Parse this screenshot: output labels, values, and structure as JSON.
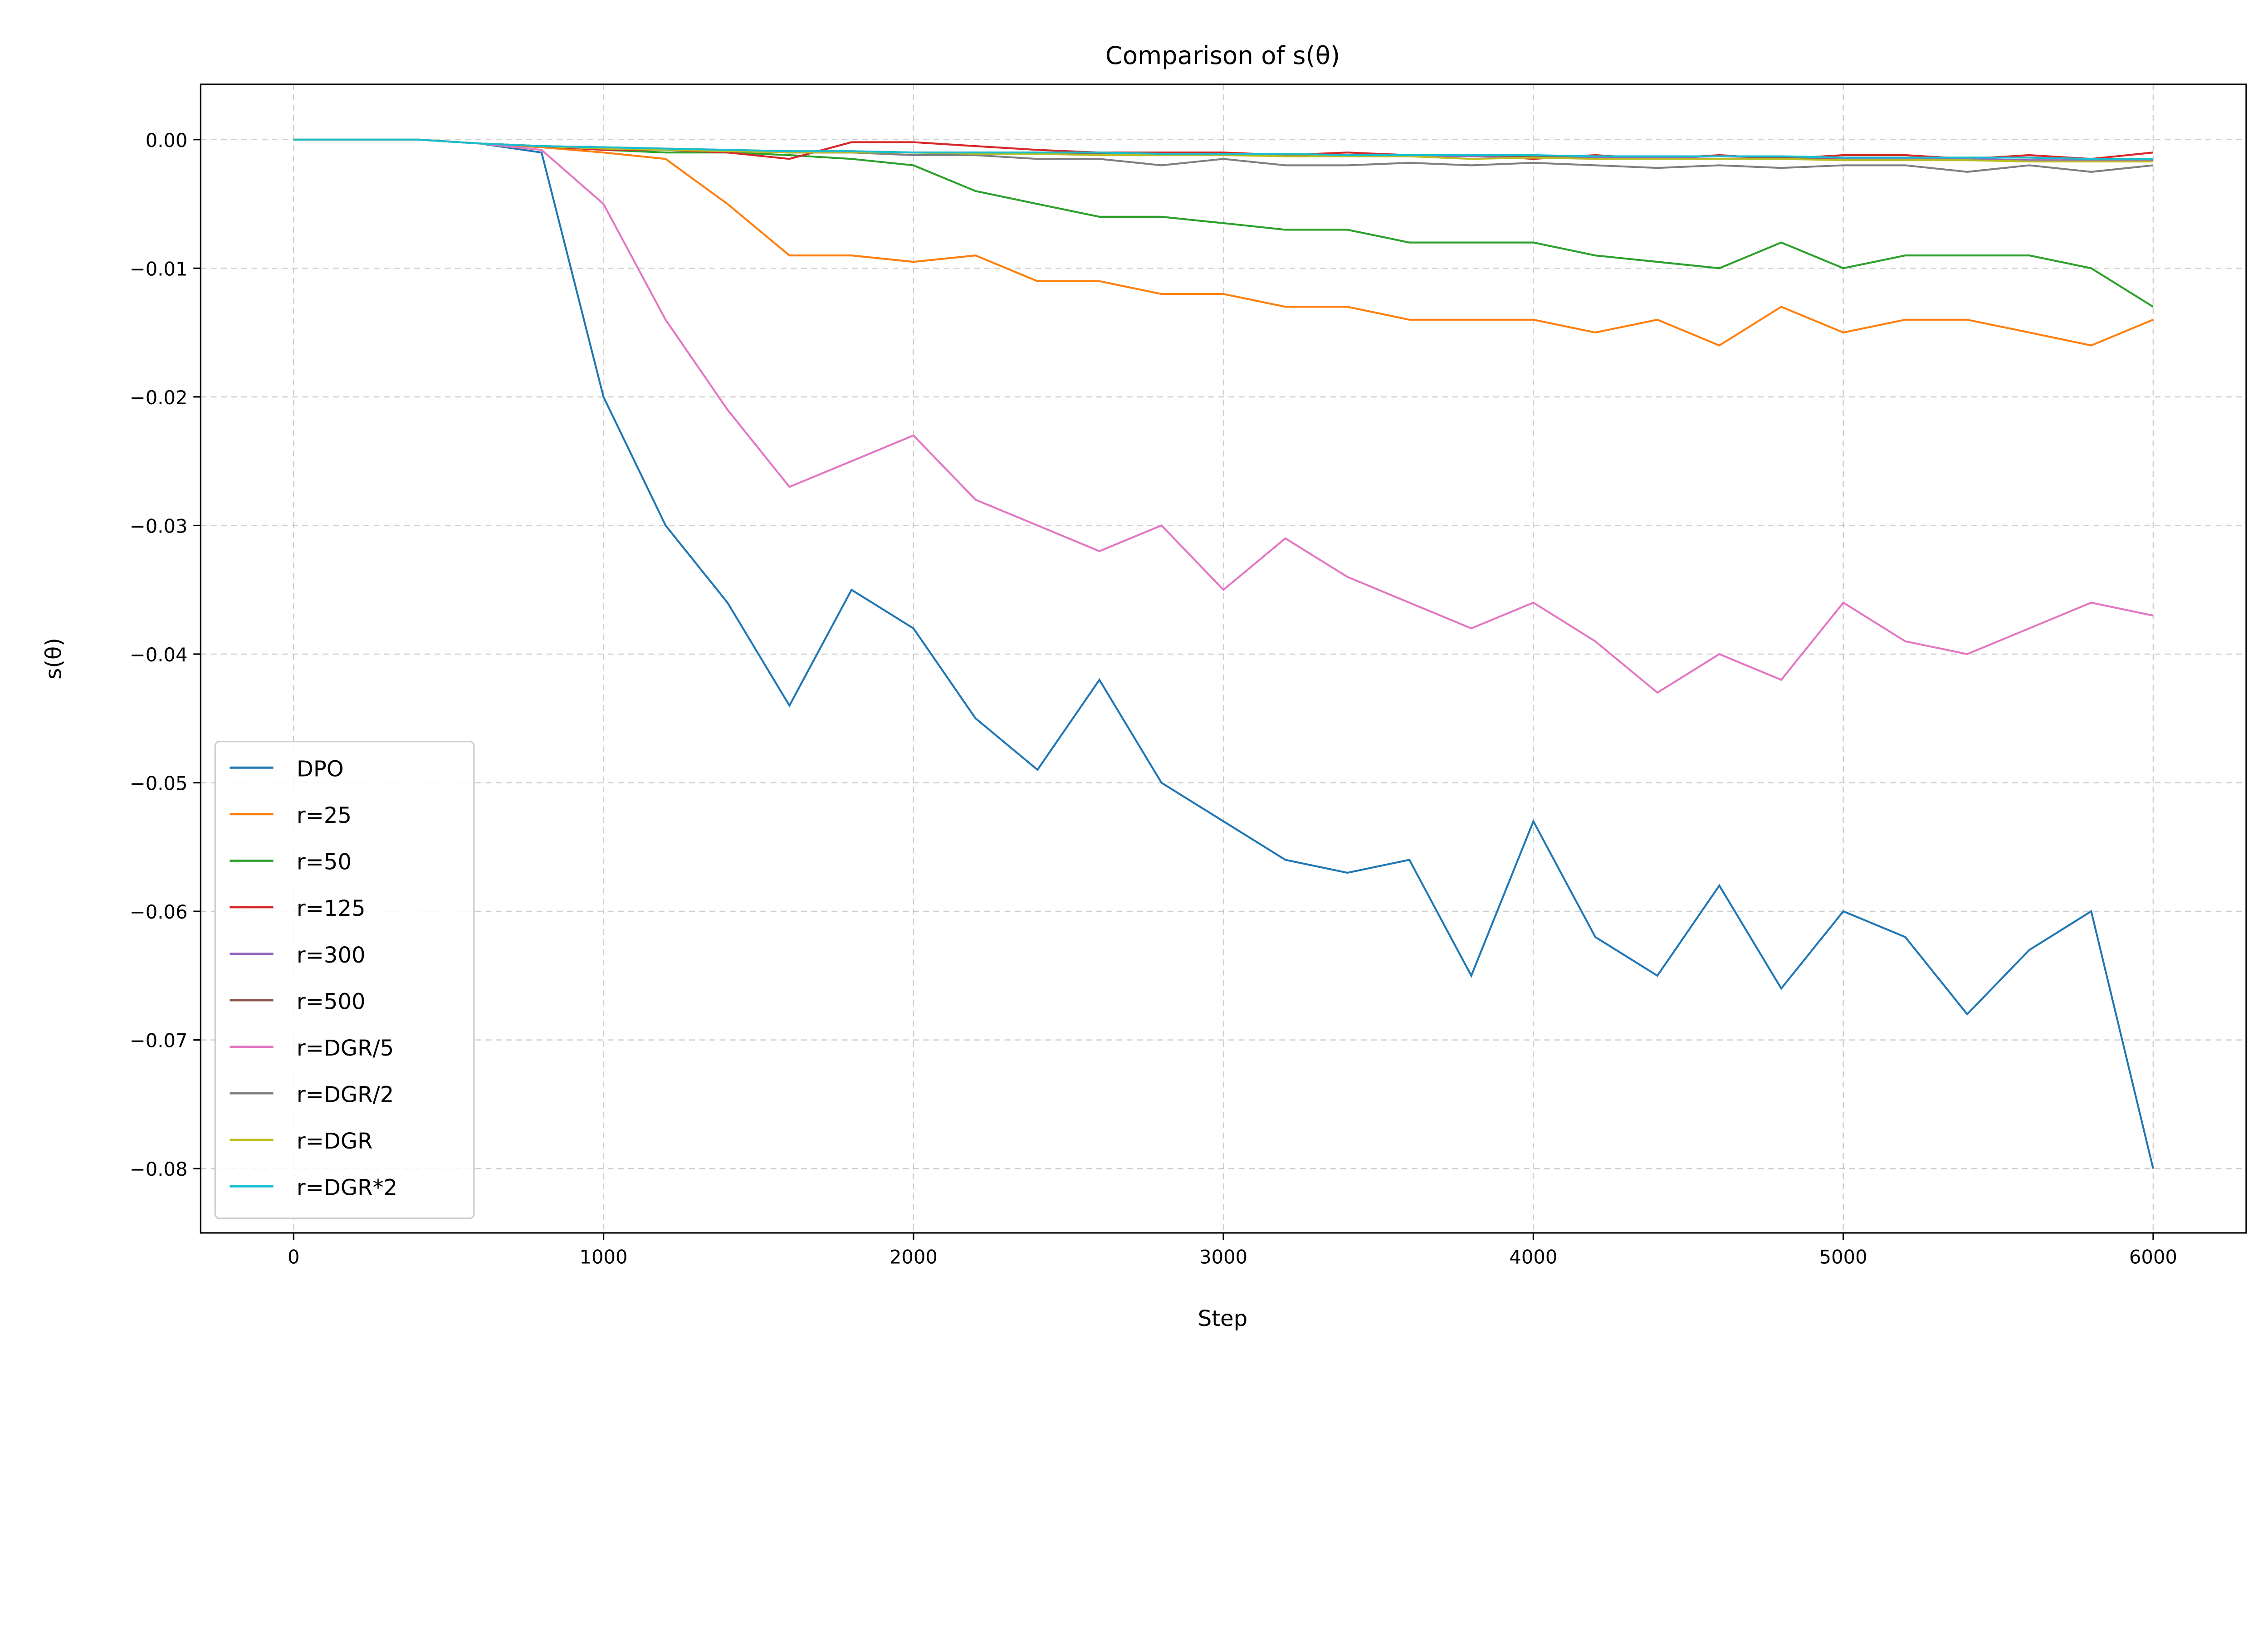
{
  "chart_data": {
    "type": "line",
    "title": "Comparison of s(θ)",
    "xlabel": "Step",
    "ylabel": "s(θ)",
    "xlim": [
      -300,
      6300
    ],
    "ylim": [
      -0.085,
      0.0043
    ],
    "grid": true,
    "legend_position": "bottom-left",
    "xticks": [
      0,
      1000,
      2000,
      3000,
      4000,
      5000,
      6000
    ],
    "xtick_labels": [
      "0",
      "1000",
      "2000",
      "3000",
      "4000",
      "5000",
      "6000"
    ],
    "yticks": [
      0,
      -0.01,
      -0.02,
      -0.03,
      -0.04,
      -0.05,
      -0.06,
      -0.07,
      -0.08
    ],
    "ytick_labels": [
      "0.00",
      "−0.01",
      "−0.02",
      "−0.03",
      "−0.04",
      "−0.05",
      "−0.06",
      "−0.07",
      "−0.08"
    ],
    "x": [
      0,
      200,
      400,
      600,
      800,
      1000,
      1200,
      1400,
      1600,
      1800,
      2000,
      2200,
      2400,
      2600,
      2800,
      3000,
      3200,
      3400,
      3600,
      3800,
      4000,
      4200,
      4400,
      4600,
      4800,
      5000,
      5200,
      5400,
      5600,
      5800,
      6000
    ],
    "series": [
      {
        "name": "DPO",
        "color": "#1f77b4",
        "values": [
          0,
          0,
          0,
          -0.0003,
          -0.001,
          -0.02,
          -0.03,
          -0.036,
          -0.044,
          -0.035,
          -0.038,
          -0.045,
          -0.049,
          -0.042,
          -0.05,
          -0.053,
          -0.056,
          -0.057,
          -0.056,
          -0.065,
          -0.053,
          -0.062,
          -0.065,
          -0.058,
          -0.066,
          -0.06,
          -0.062,
          -0.068,
          -0.063,
          -0.06,
          -0.08
        ]
      },
      {
        "name": "r=25",
        "color": "#ff7f0e",
        "values": [
          0,
          0,
          0,
          -0.0003,
          -0.0006,
          -0.001,
          -0.0015,
          -0.005,
          -0.009,
          -0.009,
          -0.0095,
          -0.009,
          -0.011,
          -0.011,
          -0.012,
          -0.012,
          -0.013,
          -0.013,
          -0.014,
          -0.014,
          -0.014,
          -0.015,
          -0.014,
          -0.016,
          -0.013,
          -0.015,
          -0.014,
          -0.014,
          -0.015,
          -0.016,
          -0.014
        ]
      },
      {
        "name": "r=50",
        "color": "#2ca02c",
        "values": [
          0,
          0,
          0,
          -0.0003,
          -0.0005,
          -0.0008,
          -0.001,
          -0.001,
          -0.0012,
          -0.0015,
          -0.002,
          -0.004,
          -0.005,
          -0.006,
          -0.006,
          -0.0065,
          -0.007,
          -0.007,
          -0.008,
          -0.008,
          -0.008,
          -0.009,
          -0.0095,
          -0.01,
          -0.008,
          -0.01,
          -0.009,
          -0.009,
          -0.009,
          -0.01,
          -0.013
        ]
      },
      {
        "name": "r=125",
        "color": "#d62728",
        "values": [
          0,
          0,
          0,
          -0.0003,
          -0.0005,
          -0.0008,
          -0.0008,
          -0.001,
          -0.0015,
          -0.0002,
          -0.0002,
          -0.0005,
          -0.0008,
          -0.001,
          -0.001,
          -0.001,
          -0.0012,
          -0.001,
          -0.0012,
          -0.0012,
          -0.0015,
          -0.0012,
          -0.0015,
          -0.0012,
          -0.0015,
          -0.0012,
          -0.0012,
          -0.0015,
          -0.0012,
          -0.0015,
          -0.001
        ]
      },
      {
        "name": "r=300",
        "color": "#9467bd",
        "values": [
          0,
          0,
          0,
          -0.0003,
          -0.0005,
          -0.0007,
          -0.0008,
          -0.0009,
          -0.001,
          -0.001,
          -0.001,
          -0.001,
          -0.0011,
          -0.0012,
          -0.0012,
          -0.0012,
          -0.0012,
          -0.0013,
          -0.0013,
          -0.0013,
          -0.0014,
          -0.0014,
          -0.0014,
          -0.0015,
          -0.0015,
          -0.0015,
          -0.0015,
          -0.0015,
          -0.0016,
          -0.0016,
          -0.0016
        ]
      },
      {
        "name": "r=500",
        "color": "#8c564b",
        "values": [
          0,
          0,
          0,
          -0.0003,
          -0.0005,
          -0.0006,
          -0.0007,
          -0.0008,
          -0.0009,
          -0.0009,
          -0.001,
          -0.001,
          -0.001,
          -0.0011,
          -0.0011,
          -0.0011,
          -0.0012,
          -0.0012,
          -0.0012,
          -0.0012,
          -0.0013,
          -0.0013,
          -0.0013,
          -0.0013,
          -0.0014,
          -0.0014,
          -0.0014,
          -0.0014,
          -0.0014,
          -0.0015,
          -0.0015
        ]
      },
      {
        "name": "r=DGR/5",
        "color": "#e377c2",
        "values": [
          0,
          0,
          0,
          -0.0003,
          -0.0008,
          -0.005,
          -0.014,
          -0.021,
          -0.027,
          -0.025,
          -0.023,
          -0.028,
          -0.03,
          -0.032,
          -0.03,
          -0.035,
          -0.031,
          -0.034,
          -0.036,
          -0.038,
          -0.036,
          -0.039,
          -0.043,
          -0.04,
          -0.042,
          -0.036,
          -0.039,
          -0.04,
          -0.038,
          -0.036,
          -0.037
        ]
      },
      {
        "name": "r=DGR/2",
        "color": "#7f7f7f",
        "values": [
          0,
          0,
          0,
          -0.0003,
          -0.0005,
          -0.0007,
          -0.0008,
          -0.0009,
          -0.001,
          -0.001,
          -0.0012,
          -0.0012,
          -0.0015,
          -0.0015,
          -0.002,
          -0.0015,
          -0.002,
          -0.002,
          -0.0018,
          -0.002,
          -0.0018,
          -0.002,
          -0.0022,
          -0.002,
          -0.0022,
          -0.002,
          -0.002,
          -0.0025,
          -0.002,
          -0.0025,
          -0.002
        ]
      },
      {
        "name": "r=DGR",
        "color": "#bcbd22",
        "values": [
          0,
          0,
          0,
          -0.0003,
          -0.0005,
          -0.0007,
          -0.0008,
          -0.0009,
          -0.001,
          -0.001,
          -0.001,
          -0.0011,
          -0.0011,
          -0.0012,
          -0.0012,
          -0.0012,
          -0.0013,
          -0.0013,
          -0.0013,
          -0.0015,
          -0.0014,
          -0.0015,
          -0.0015,
          -0.0015,
          -0.0015,
          -0.0016,
          -0.0016,
          -0.0016,
          -0.0017,
          -0.0017,
          -0.0017
        ]
      },
      {
        "name": "r=DGR*2",
        "color": "#17becf",
        "values": [
          0,
          0,
          0,
          -0.0003,
          -0.0005,
          -0.0006,
          -0.0007,
          -0.0008,
          -0.0009,
          -0.0009,
          -0.001,
          -0.001,
          -0.001,
          -0.001,
          -0.0011,
          -0.0011,
          -0.0011,
          -0.0012,
          -0.0012,
          -0.0012,
          -0.0012,
          -0.0013,
          -0.0013,
          -0.0013,
          -0.0013,
          -0.0014,
          -0.0014,
          -0.0014,
          -0.0014,
          -0.0015,
          -0.0015
        ]
      }
    ]
  }
}
